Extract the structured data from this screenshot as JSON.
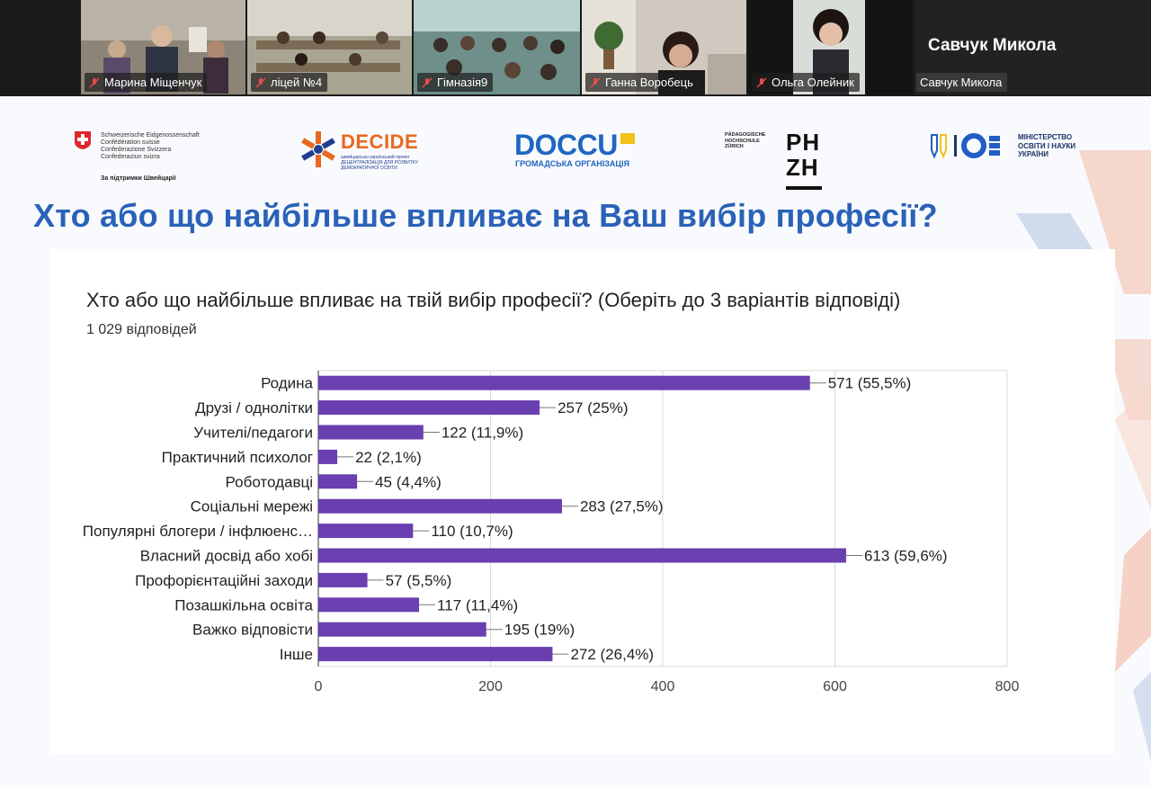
{
  "participants": [
    {
      "name": "Марина Міщенчук",
      "muted": true
    },
    {
      "name": "ліцей №4",
      "muted": true
    },
    {
      "name": "Гімназія9",
      "muted": true
    },
    {
      "name": "Ганна Воробець",
      "muted": true
    },
    {
      "name": "Ольга Олейник",
      "muted": true
    }
  ],
  "active_speaker": {
    "display_name": "Савчук Микола",
    "tile_label": "Савчук Микола"
  },
  "slide": {
    "logos": {
      "swiss_lines": [
        "Schweizerische Eidgenossenschaft",
        "Confédération suisse",
        "Confederazione Svizzera",
        "Confederaziun svizra"
      ],
      "swiss_support": "За підтримки Швейцарії",
      "decide": "DECIDE",
      "decide_sub": [
        "швейцарсько-український проект",
        "ДЕЦЕНТРАЛІЗАЦІЯ ДЛЯ РОЗВИТКУ",
        "ДЕМОКРАТИЧНОЇ ОСВІТИ"
      ],
      "doccu": "DOCCU",
      "doccu_sub": "ГРОМАДСЬКА ОРГАНІЗАЦІЯ",
      "phzh_small": [
        "PÄDAGOGISCHE",
        "HOCHSCHULE",
        "ZÜRICH"
      ],
      "phzh_big": [
        "PH",
        "ZH"
      ],
      "ministry": [
        "МІНІСТЕРСТВО",
        "ОСВІТИ І НАУКИ",
        "УКРАЇНИ"
      ]
    },
    "title": "Хто або що найбільше впливає на Ваш вибір професії?",
    "colors": {
      "title": "#2a62b8",
      "bar": "#6a3fb0"
    }
  },
  "chart_data": {
    "type": "bar",
    "orientation": "horizontal",
    "title": "Хто або що найбільше впливає на твій вибір професії? (Оберіть до 3 варіантів відповіді)",
    "subtitle": "1 029 відповідей",
    "categories": [
      "Родина",
      "Друзі / однолітки",
      "Учителі/педагоги",
      "Практичний психолог",
      "Роботодавці",
      "Соціальні мережі",
      "Популярні блогери / інфлюенс…",
      "Власний досвід або хобі",
      "Профорієнтаційні заходи",
      "Позашкільна освіта",
      "Важко відповісти",
      "Інше"
    ],
    "values": [
      571,
      257,
      122,
      22,
      45,
      283,
      110,
      613,
      57,
      117,
      195,
      272
    ],
    "data_labels": [
      "571 (55,5%)",
      "257 (25%)",
      "122 (11,9%)",
      "22 (2,1%)",
      "45 (4,4%)",
      "283 (27,5%)",
      "110 (10,7%)",
      "613 (59,6%)",
      "57 (5,5%)",
      "117 (11,4%)",
      "195 (19%)",
      "272 (26,4%)"
    ],
    "x_ticks": [
      0,
      200,
      400,
      600,
      800
    ],
    "xlim": [
      0,
      800
    ],
    "grid": true,
    "bar_color": "#6a3fb0"
  }
}
